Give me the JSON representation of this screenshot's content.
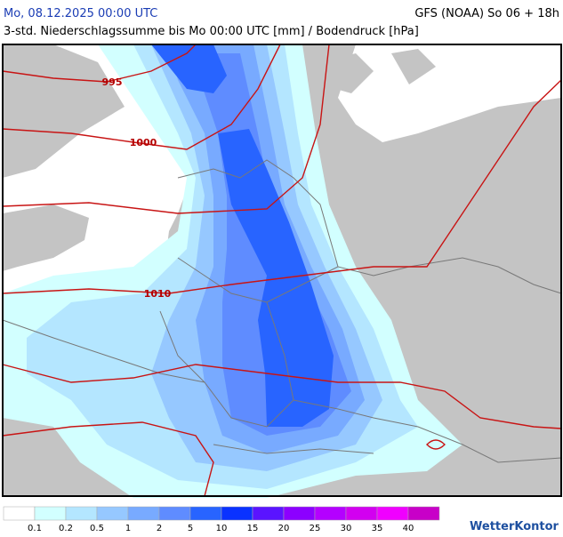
{
  "header": {
    "title": "Mo, 08.12.2025 00:00 UTC",
    "model": "GFS (NOAA) So 06 + 18h",
    "subtitle": "3-std. Niederschlagssumme bis Mo 00:00 UTC [mm] / Bodendruck [hPa]"
  },
  "isobars": [
    {
      "label": "995"
    },
    {
      "label": "1000"
    },
    {
      "label": "1010"
    }
  ],
  "legend": {
    "labels": [
      "0.1",
      "0.2",
      "0.5",
      "1",
      "2",
      "5",
      "10",
      "15",
      "20",
      "25",
      "30",
      "35",
      "40"
    ],
    "colors": [
      "#ffffff",
      "#d2ffff",
      "#b4e6ff",
      "#96c8ff",
      "#78aaff",
      "#5f8cff",
      "#2864ff",
      "#0a32ff",
      "#5a14ff",
      "#8c00ff",
      "#b400ff",
      "#d200f0",
      "#f000ff",
      "#c800c8"
    ]
  },
  "logo": "WetterKontor"
}
